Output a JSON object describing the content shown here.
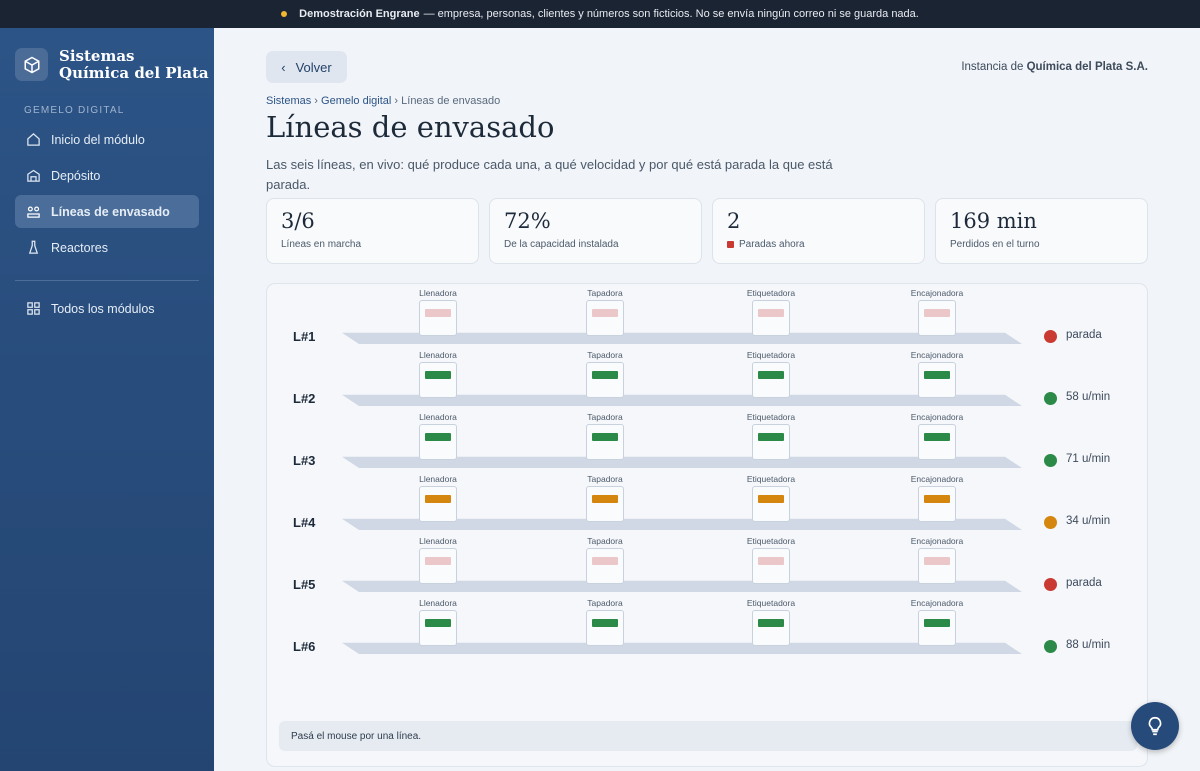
{
  "banner": {
    "title": "Demostración Engrane",
    "text": "— empresa, personas, clientes y números son ficticios. No se envía ningún correo ni se guarda nada."
  },
  "sidebar": {
    "brand_line1": "Sistemas",
    "brand_line2": "Química del Plata",
    "section": "GEMELO DIGITAL",
    "nav": [
      "Inicio del módulo",
      "Depósito",
      "Líneas de envasado",
      "Reactores"
    ],
    "all_modules": "Todos los módulos"
  },
  "header": {
    "back": "Volver",
    "instance_prefix": "Instancia de",
    "instance_name": "Química del Plata S.A."
  },
  "breadcrumb": [
    "Sistemas",
    "Gemelo digital",
    "Líneas de envasado"
  ],
  "title": "Líneas de envasado",
  "description": "Las seis líneas, en vivo: qué produce cada una, a qué velocidad y por qué está parada la que está parada.",
  "kpis": [
    {
      "value": "3/6",
      "label": "Líneas en marcha"
    },
    {
      "value": "72%",
      "label": "De la capacidad instalada"
    },
    {
      "value": "2",
      "label": "Paradas ahora"
    },
    {
      "value": "169 min",
      "label": "Perdidos en el turno"
    }
  ],
  "stations": [
    "Llenadora",
    "Tapadora",
    "Etiquetadora",
    "Encajonadora"
  ],
  "lines": [
    {
      "id": "L#1",
      "status": "parada",
      "color": "#c93a32",
      "indicator_color": "#ebc7c9"
    },
    {
      "id": "L#2",
      "status": "58 u/min",
      "color": "#2b8a47",
      "indicator_color": "#2b8a47"
    },
    {
      "id": "L#3",
      "status": "71 u/min",
      "color": "#2b8a47",
      "indicator_color": "#2b8a47"
    },
    {
      "id": "L#4",
      "status": "34 u/min",
      "color": "#d4860f",
      "indicator_color": "#d4860f"
    },
    {
      "id": "L#5",
      "status": "parada",
      "color": "#c93a32",
      "indicator_color": "#ebc7c9"
    },
    {
      "id": "L#6",
      "status": "88 u/min",
      "color": "#2b8a47",
      "indicator_color": "#2b8a47"
    }
  ],
  "hint": "Pasá el mouse por una línea."
}
